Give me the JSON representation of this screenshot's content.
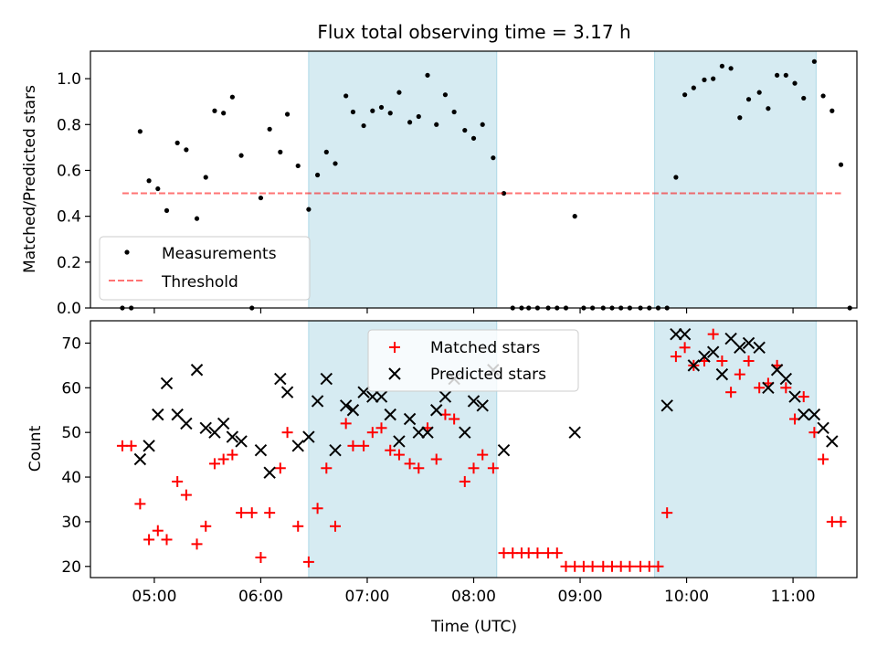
{
  "figure": {
    "title": "Flux total observing time = 3.17 h",
    "xlabel": "Time (UTC)",
    "x_ticks": [
      "05:00",
      "06:00",
      "07:00",
      "08:00",
      "09:00",
      "10:00",
      "11:00"
    ],
    "shaded_color": "#add8e6",
    "shaded_intervals": [
      [
        "06:27",
        "08:13"
      ],
      [
        "09:42",
        "11:13"
      ]
    ]
  },
  "chart_data": [
    {
      "type": "scatter",
      "name": "top",
      "ylabel": "Matched/Predicted stars",
      "ylim": [
        0,
        1.12
      ],
      "yticks": [
        "0.0",
        "0.2",
        "0.4",
        "0.6",
        "0.8",
        "1.0"
      ],
      "xlim": [
        "04:24",
        "11:36"
      ],
      "legend_placement": "lower left",
      "series": [
        {
          "name": "Measurements",
          "color": "#000000",
          "marker": "dot",
          "points": [
            [
              "04:42",
              0.0
            ],
            [
              "04:47",
              0.0
            ],
            [
              "04:52",
              0.77
            ],
            [
              "04:57",
              0.555
            ],
            [
              "05:02",
              0.52
            ],
            [
              "05:07",
              0.425
            ],
            [
              "05:13",
              0.72
            ],
            [
              "05:18",
              0.69
            ],
            [
              "05:24",
              0.39
            ],
            [
              "05:29",
              0.57
            ],
            [
              "05:34",
              0.86
            ],
            [
              "05:39",
              0.85
            ],
            [
              "05:44",
              0.92
            ],
            [
              "05:49",
              0.665
            ],
            [
              "05:55",
              0.0
            ],
            [
              "06:00",
              0.48
            ],
            [
              "06:05",
              0.78
            ],
            [
              "06:11",
              0.68
            ],
            [
              "06:15",
              0.845
            ],
            [
              "06:21",
              0.62
            ],
            [
              "06:27",
              0.43
            ],
            [
              "06:32",
              0.58
            ],
            [
              "06:37",
              0.68
            ],
            [
              "06:42",
              0.63
            ],
            [
              "06:48",
              0.925
            ],
            [
              "06:52",
              0.855
            ],
            [
              "06:58",
              0.795
            ],
            [
              "07:03",
              0.86
            ],
            [
              "07:08",
              0.875
            ],
            [
              "07:13",
              0.85
            ],
            [
              "07:18",
              0.94
            ],
            [
              "07:24",
              0.81
            ],
            [
              "07:29",
              0.835
            ],
            [
              "07:34",
              1.015
            ],
            [
              "07:39",
              0.8
            ],
            [
              "07:44",
              0.93
            ],
            [
              "07:49",
              0.855
            ],
            [
              "07:55",
              0.775
            ],
            [
              "08:00",
              0.74
            ],
            [
              "08:05",
              0.8
            ],
            [
              "08:11",
              0.655
            ],
            [
              "08:17",
              0.5
            ],
            [
              "08:22",
              0.0
            ],
            [
              "08:27",
              0.0
            ],
            [
              "08:31",
              0.0
            ],
            [
              "08:36",
              0.0
            ],
            [
              "08:42",
              0.0
            ],
            [
              "08:47",
              0.0
            ],
            [
              "08:52",
              0.0
            ],
            [
              "08:57",
              0.4
            ],
            [
              "09:02",
              0.0
            ],
            [
              "09:07",
              0.0
            ],
            [
              "09:13",
              0.0
            ],
            [
              "09:18",
              0.0
            ],
            [
              "09:23",
              0.0
            ],
            [
              "09:28",
              0.0
            ],
            [
              "09:34",
              0.0
            ],
            [
              "09:39",
              0.0
            ],
            [
              "09:44",
              0.0
            ],
            [
              "09:49",
              0.0
            ],
            [
              "09:54",
              0.57
            ],
            [
              "09:59",
              0.93
            ],
            [
              "10:04",
              0.96
            ],
            [
              "10:10",
              0.995
            ],
            [
              "10:15",
              1.0
            ],
            [
              "10:20",
              1.055
            ],
            [
              "10:25",
              1.045
            ],
            [
              "10:30",
              0.83
            ],
            [
              "10:35",
              0.91
            ],
            [
              "10:41",
              0.94
            ],
            [
              "10:46",
              0.87
            ],
            [
              "10:51",
              1.015
            ],
            [
              "10:56",
              1.015
            ],
            [
              "11:01",
              0.98
            ],
            [
              "11:06",
              0.915
            ],
            [
              "11:12",
              1.075
            ],
            [
              "11:17",
              0.925
            ],
            [
              "11:22",
              0.86
            ],
            [
              "11:27",
              0.625
            ],
            [
              "11:32",
              0.0
            ]
          ]
        },
        {
          "name": "Threshold",
          "color": "#ff0000",
          "style": "dashed",
          "points": [
            [
              "04:42",
              0.5
            ],
            [
              "11:27",
              0.5
            ]
          ]
        }
      ]
    },
    {
      "type": "scatter",
      "name": "bottom",
      "ylabel": "Count",
      "ylim": [
        17.5,
        75
      ],
      "yticks": [
        "20",
        "30",
        "40",
        "50",
        "60",
        "70"
      ],
      "xlim": [
        "04:24",
        "11:36"
      ],
      "legend_placement": "upper center",
      "series": [
        {
          "name": "Matched stars",
          "color": "#ff0000",
          "marker": "plus",
          "points": [
            [
              "04:42",
              47
            ],
            [
              "04:47",
              47
            ],
            [
              "04:52",
              34
            ],
            [
              "04:57",
              26
            ],
            [
              "05:02",
              28
            ],
            [
              "05:07",
              26
            ],
            [
              "05:13",
              39
            ],
            [
              "05:18",
              36
            ],
            [
              "05:24",
              25
            ],
            [
              "05:29",
              29
            ],
            [
              "05:34",
              43
            ],
            [
              "05:39",
              44
            ],
            [
              "05:44",
              45
            ],
            [
              "05:49",
              32
            ],
            [
              "05:55",
              32
            ],
            [
              "06:00",
              22
            ],
            [
              "06:05",
              32
            ],
            [
              "06:11",
              42
            ],
            [
              "06:15",
              50
            ],
            [
              "06:21",
              29
            ],
            [
              "06:27",
              21
            ],
            [
              "06:32",
              33
            ],
            [
              "06:37",
              42
            ],
            [
              "06:42",
              29
            ],
            [
              "06:48",
              52
            ],
            [
              "06:52",
              47
            ],
            [
              "06:58",
              47
            ],
            [
              "07:03",
              50
            ],
            [
              "07:08",
              51
            ],
            [
              "07:13",
              46
            ],
            [
              "07:18",
              45
            ],
            [
              "07:24",
              43
            ],
            [
              "07:29",
              42
            ],
            [
              "07:34",
              51
            ],
            [
              "07:39",
              44
            ],
            [
              "07:44",
              54
            ],
            [
              "07:49",
              53
            ],
            [
              "07:55",
              39
            ],
            [
              "08:00",
              42
            ],
            [
              "08:05",
              45
            ],
            [
              "08:11",
              42
            ],
            [
              "08:17",
              23
            ],
            [
              "08:22",
              23
            ],
            [
              "08:27",
              23
            ],
            [
              "08:31",
              23
            ],
            [
              "08:36",
              23
            ],
            [
              "08:42",
              23
            ],
            [
              "08:47",
              23
            ],
            [
              "08:52",
              20
            ],
            [
              "08:57",
              20
            ],
            [
              "09:02",
              20
            ],
            [
              "09:07",
              20
            ],
            [
              "09:13",
              20
            ],
            [
              "09:18",
              20
            ],
            [
              "09:23",
              20
            ],
            [
              "09:28",
              20
            ],
            [
              "09:34",
              20
            ],
            [
              "09:39",
              20
            ],
            [
              "09:44",
              20
            ],
            [
              "09:49",
              32
            ],
            [
              "09:54",
              67
            ],
            [
              "09:59",
              69
            ],
            [
              "10:04",
              65
            ],
            [
              "10:10",
              66
            ],
            [
              "10:15",
              72
            ],
            [
              "10:20",
              66
            ],
            [
              "10:25",
              59
            ],
            [
              "10:30",
              63
            ],
            [
              "10:35",
              66
            ],
            [
              "10:41",
              60
            ],
            [
              "10:46",
              61
            ],
            [
              "10:51",
              65
            ],
            [
              "10:56",
              60
            ],
            [
              "11:01",
              53
            ],
            [
              "11:06",
              58
            ],
            [
              "11:12",
              50
            ],
            [
              "11:17",
              44
            ],
            [
              "11:22",
              30
            ],
            [
              "11:27",
              30
            ]
          ]
        },
        {
          "name": "Predicted stars",
          "color": "#000000",
          "marker": "x",
          "points": [
            [
              "04:52",
              44
            ],
            [
              "04:57",
              47
            ],
            [
              "05:02",
              54
            ],
            [
              "05:07",
              61
            ],
            [
              "05:13",
              54
            ],
            [
              "05:18",
              52
            ],
            [
              "05:24",
              64
            ],
            [
              "05:29",
              51
            ],
            [
              "05:34",
              50
            ],
            [
              "05:39",
              52
            ],
            [
              "05:44",
              49
            ],
            [
              "05:49",
              48
            ],
            [
              "06:00",
              46
            ],
            [
              "06:05",
              41
            ],
            [
              "06:11",
              62
            ],
            [
              "06:15",
              59
            ],
            [
              "06:21",
              47
            ],
            [
              "06:27",
              49
            ],
            [
              "06:32",
              57
            ],
            [
              "06:37",
              62
            ],
            [
              "06:42",
              46
            ],
            [
              "06:48",
              56
            ],
            [
              "06:52",
              55
            ],
            [
              "06:58",
              59
            ],
            [
              "07:03",
              58
            ],
            [
              "07:08",
              58
            ],
            [
              "07:13",
              54
            ],
            [
              "07:18",
              48
            ],
            [
              "07:24",
              53
            ],
            [
              "07:29",
              50
            ],
            [
              "07:34",
              50
            ],
            [
              "07:39",
              55
            ],
            [
              "07:44",
              58
            ],
            [
              "07:49",
              62
            ],
            [
              "07:55",
              50
            ],
            [
              "08:00",
              57
            ],
            [
              "08:05",
              56
            ],
            [
              "08:11",
              64
            ],
            [
              "08:17",
              46
            ],
            [
              "08:57",
              50
            ],
            [
              "09:49",
              56
            ],
            [
              "09:54",
              72
            ],
            [
              "09:59",
              72
            ],
            [
              "10:04",
              65
            ],
            [
              "10:10",
              67
            ],
            [
              "10:15",
              68
            ],
            [
              "10:20",
              63
            ],
            [
              "10:25",
              71
            ],
            [
              "10:30",
              69
            ],
            [
              "10:35",
              70
            ],
            [
              "10:41",
              69
            ],
            [
              "10:46",
              60
            ],
            [
              "10:51",
              64
            ],
            [
              "10:56",
              62
            ],
            [
              "11:01",
              58
            ],
            [
              "11:06",
              54
            ],
            [
              "11:12",
              54
            ],
            [
              "11:17",
              51
            ],
            [
              "11:22",
              48
            ]
          ]
        }
      ]
    }
  ]
}
